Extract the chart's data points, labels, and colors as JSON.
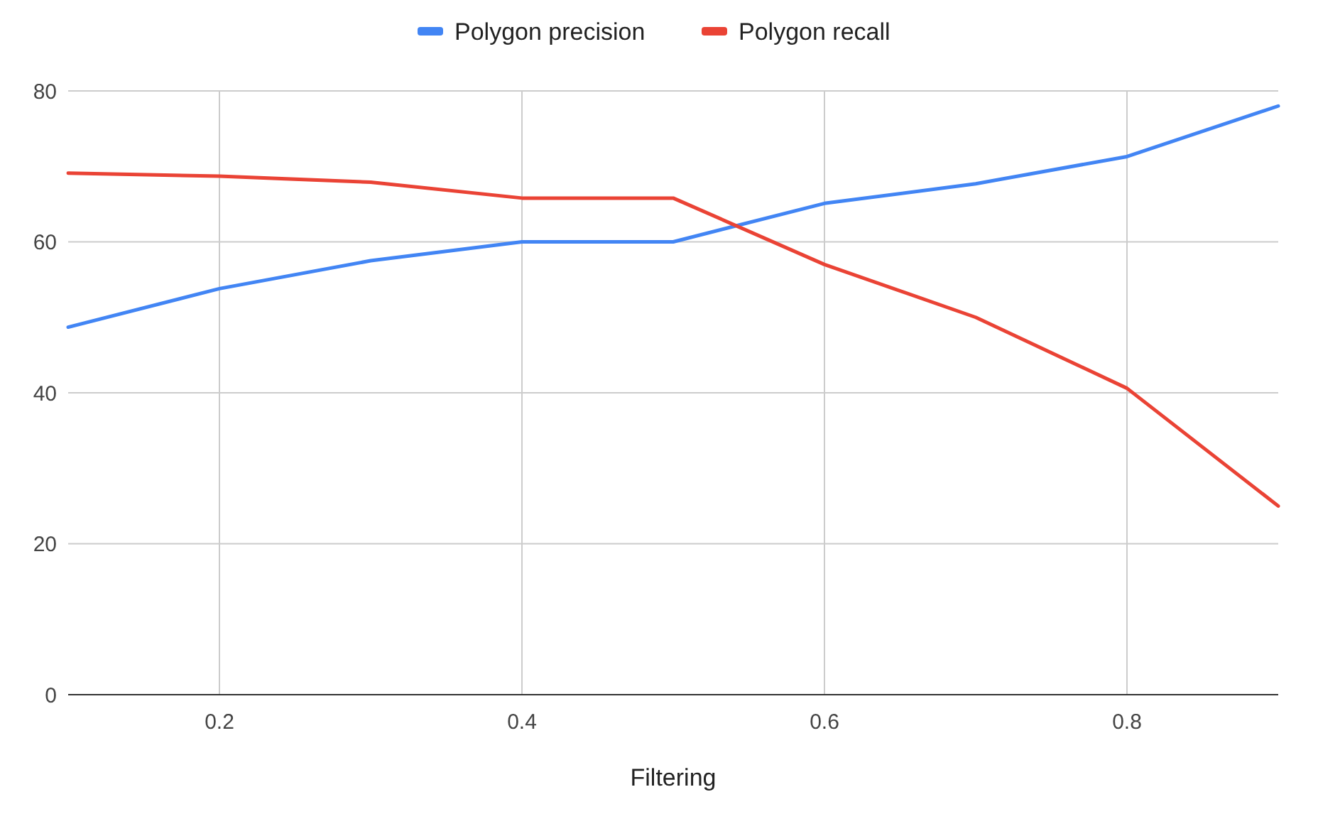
{
  "chart_data": {
    "type": "line",
    "xlabel": "Filtering",
    "x": [
      0.1,
      0.2,
      0.3,
      0.4,
      0.5,
      0.6,
      0.7,
      0.8,
      0.9
    ],
    "series": [
      {
        "name": "Polygon precision",
        "color": "#4285f4",
        "values": [
          48.7,
          53.8,
          57.5,
          60,
          60,
          65.1,
          67.7,
          71.3,
          78
        ]
      },
      {
        "name": "Polygon recall",
        "color": "#ea4335",
        "values": [
          69.1,
          68.7,
          67.9,
          65.8,
          65.8,
          57,
          50,
          40.6,
          25
        ]
      }
    ],
    "xlim": [
      0.1,
      0.9
    ],
    "xticks": [
      0.2,
      0.4,
      0.6,
      0.8
    ],
    "ylim": [
      0,
      80
    ],
    "yticks": [
      0,
      20,
      40,
      60,
      80
    ],
    "grid": true,
    "legend": "top",
    "marker": "none",
    "line_style": "solid"
  }
}
